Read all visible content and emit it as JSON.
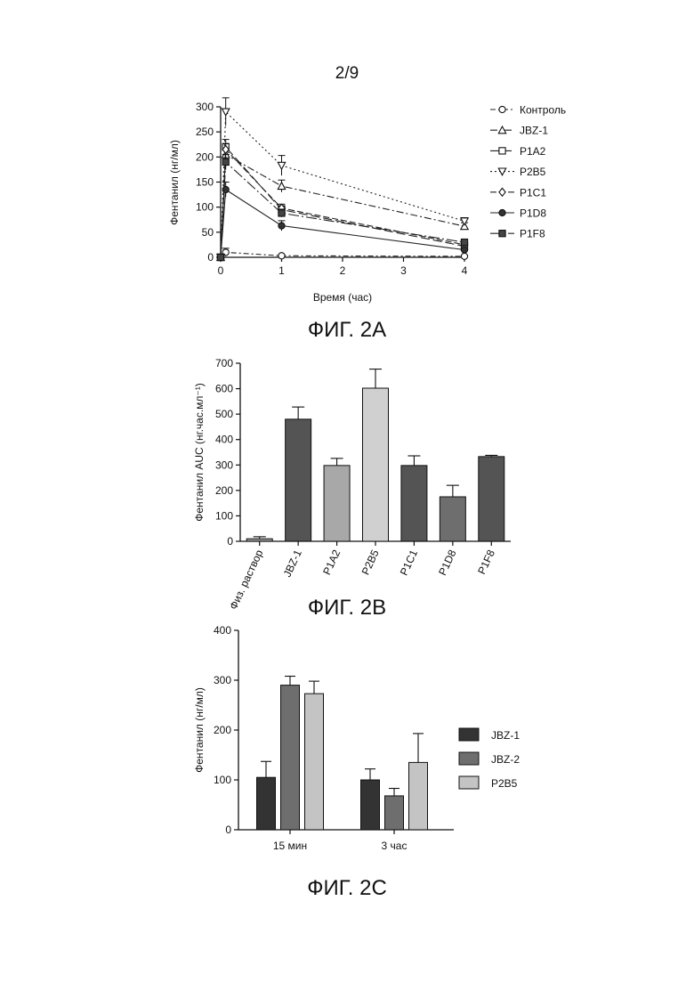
{
  "page_number": "2/9",
  "chart_data": [
    {
      "id": "fig2a",
      "type": "line",
      "caption": "ФИГ. 2А",
      "xlabel": "Время (час)",
      "ylabel": "Фентанил (нг/мл)",
      "xlim": [
        0,
        4
      ],
      "ylim": [
        0,
        300
      ],
      "xticks": [
        0,
        1,
        2,
        3,
        4
      ],
      "yticks": [
        0,
        50,
        100,
        150,
        200,
        250,
        300
      ],
      "legend_position": "right",
      "series": [
        {
          "name": "Контроль",
          "marker": "circle-open",
          "dash": "6,3,2,3",
          "x": [
            0,
            0.083,
            1,
            4
          ],
          "y": [
            0,
            10,
            3,
            2
          ],
          "err": [
            0,
            8,
            2,
            2
          ]
        },
        {
          "name": "JBZ-1",
          "marker": "triangle-up",
          "dash": "8,3,2,3",
          "x": [
            0,
            0.083,
            1,
            4
          ],
          "y": [
            0,
            205,
            142,
            62
          ],
          "err": [
            0,
            20,
            12,
            7
          ]
        },
        {
          "name": "P1A2",
          "marker": "square-open",
          "dash": "10,4",
          "x": [
            0,
            0.083,
            1,
            4
          ],
          "y": [
            0,
            220,
            95,
            22
          ],
          "err": [
            0,
            15,
            8,
            4
          ]
        },
        {
          "name": "P2B5",
          "marker": "triangle-down",
          "dash": "2,3",
          "x": [
            0,
            0.083,
            1,
            4
          ],
          "y": [
            0,
            290,
            183,
            72
          ],
          "err": [
            0,
            28,
            20,
            7
          ]
        },
        {
          "name": "P1C1",
          "marker": "diamond-open",
          "dash": "7,3",
          "x": [
            0,
            0.083,
            1,
            4
          ],
          "y": [
            0,
            215,
            98,
            25
          ],
          "err": [
            0,
            12,
            8,
            4
          ]
        },
        {
          "name": "P1D8",
          "marker": "circle-filled",
          "dash": "",
          "x": [
            0,
            0.083,
            1,
            4
          ],
          "y": [
            0,
            135,
            63,
            15
          ],
          "err": [
            0,
            15,
            10,
            3
          ]
        },
        {
          "name": "P1F8",
          "marker": "square-filled",
          "dash": "12,3,2,3",
          "x": [
            0,
            0.083,
            1,
            4
          ],
          "y": [
            0,
            190,
            88,
            30
          ],
          "err": [
            0,
            15,
            8,
            4
          ]
        }
      ]
    },
    {
      "id": "fig2b",
      "type": "bar",
      "caption": "ФИГ. 2В",
      "ylabel": "Фентанил AUC (нг.час.мл⁻¹)",
      "ylim": [
        0,
        700
      ],
      "yticks": [
        0,
        100,
        200,
        300,
        400,
        500,
        600,
        700
      ],
      "categories": [
        "Физ. раствор",
        "JBZ-1",
        "P1A2",
        "P2B5",
        "P1C1",
        "P1D8",
        "P1F8"
      ],
      "values": [
        10,
        480,
        298,
        602,
        298,
        175,
        333
      ],
      "errors": [
        8,
        48,
        28,
        75,
        38,
        45,
        5
      ],
      "colors": [
        "#9a9a9a",
        "#545454",
        "#a8a8a8",
        "#d0d0d0",
        "#545454",
        "#6e6e6e",
        "#545454"
      ]
    },
    {
      "id": "fig2c",
      "type": "bar",
      "caption": "ФИГ. 2С",
      "ylabel": "Фентанил (нг/мл)",
      "ylim": [
        0,
        400
      ],
      "yticks": [
        0,
        100,
        200,
        300,
        400
      ],
      "categories": [
        "15 мин",
        "3 час"
      ],
      "legend_position": "right",
      "series": [
        {
          "name": "JBZ-1",
          "values": [
            105,
            100
          ],
          "errors": [
            32,
            22
          ],
          "color": "#333333"
        },
        {
          "name": "JBZ-2",
          "values": [
            290,
            68
          ],
          "errors": [
            18,
            15
          ],
          "color": "#6e6e6e"
        },
        {
          "name": "P2B5",
          "values": [
            273,
            135
          ],
          "errors": [
            25,
            58
          ],
          "color": "#c4c4c4"
        }
      ]
    }
  ]
}
